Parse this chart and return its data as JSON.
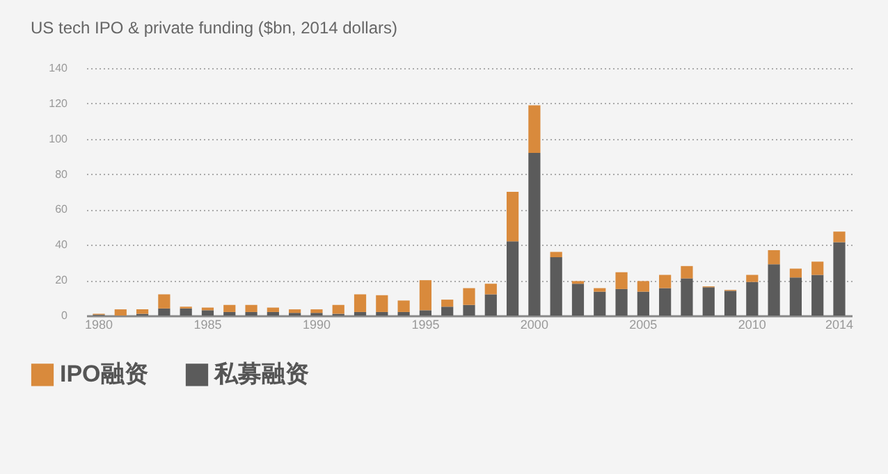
{
  "chart_data": {
    "type": "bar",
    "title": "US tech IPO & private funding ($bn, 2014 dollars)",
    "categories": [
      "1980",
      null,
      null,
      null,
      null,
      "1985",
      null,
      null,
      null,
      null,
      "1990",
      null,
      null,
      null,
      null,
      "1995",
      null,
      null,
      null,
      null,
      "2000",
      null,
      null,
      null,
      null,
      "2005",
      null,
      null,
      null,
      null,
      "2010",
      null,
      null,
      null,
      "2014"
    ],
    "stacked": true,
    "series": [
      {
        "name": "私募融资",
        "color": "#5b5b5b",
        "values": [
          0.5,
          null,
          1,
          4,
          4,
          3,
          2,
          2,
          2,
          1.5,
          1.5,
          1,
          2,
          2,
          2,
          3,
          5,
          6,
          12,
          42,
          92,
          33,
          18,
          13.5,
          15,
          13.5,
          15.5,
          21,
          16,
          14,
          19,
          29,
          21.5,
          23,
          41.5
        ]
      },
      {
        "name": "IPO融资",
        "color": "#d98a3c",
        "values": [
          0.5,
          3.5,
          2.5,
          8,
          1,
          1.5,
          4,
          4,
          2.5,
          2,
          2,
          5,
          10,
          9.5,
          6.5,
          17,
          4,
          9.5,
          6,
          28,
          27,
          3,
          1.5,
          2,
          9.5,
          6,
          7.5,
          7,
          0.5,
          0.5,
          4,
          8,
          5,
          7.5,
          6
        ]
      }
    ],
    "ylim": [
      0,
      140
    ],
    "yticks": [
      0,
      20,
      40,
      60,
      80,
      100,
      120,
      140
    ],
    "grid": "y",
    "legend": "bottom left"
  }
}
